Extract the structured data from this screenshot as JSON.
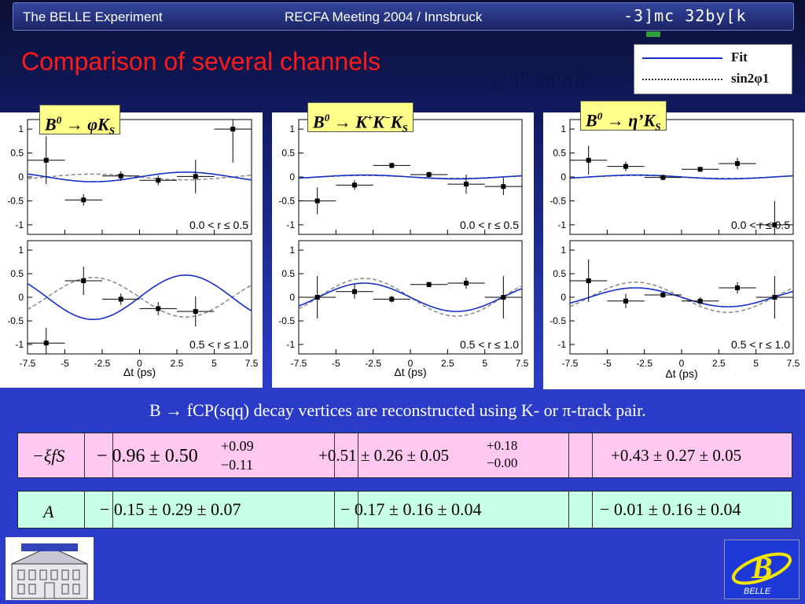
{
  "header": {
    "left": "The BELLE   Experiment",
    "center": "RECFA Meeting 2004 / Innsbruck",
    "right": "-3]mc 32by[k"
  },
  "title": "Comparison of several channels",
  "dataset": "@ 152M BB̄",
  "legend": {
    "fit_label": "Fit",
    "sin_label": "sin2φ1",
    "fit_color": "#1530c8",
    "sin_color": "#888888"
  },
  "caption": "B → fCP(sqq) decay vertices are reconstructed using K- or π-track pair.",
  "chart_data": [
    {
      "type": "scatter",
      "channel": "B0 → φKS",
      "xlabel": "Δt (ps)",
      "ylim": [
        -1.2,
        1.2
      ],
      "xlim": [
        -7.5,
        7.5
      ],
      "subplots": [
        {
          "label": "0.0 < r ≤ 0.5",
          "points": [
            [
              -6.25,
              0.35,
              0.5
            ],
            [
              -3.75,
              -0.48,
              0.12
            ],
            [
              -1.25,
              0.02,
              0.1
            ],
            [
              1.25,
              -0.07,
              0.1
            ],
            [
              3.75,
              0.01,
              0.35
            ],
            [
              6.25,
              1.0,
              0.7
            ]
          ],
          "fit": {
            "amp": 0.1,
            "decay": 0.0
          },
          "ref": {
            "amp": -0.06,
            "decay": 0.0
          }
        },
        {
          "label": "0.5 < r ≤ 1.0",
          "points": [
            [
              -6.25,
              -0.97,
              0.32
            ],
            [
              -3.75,
              0.35,
              0.3
            ],
            [
              -1.25,
              -0.04,
              0.12
            ],
            [
              1.25,
              -0.24,
              0.14
            ],
            [
              3.75,
              -0.3,
              0.32
            ]
          ],
          "fit": {
            "amp": 0.47,
            "decay": 0.0
          },
          "ref": {
            "amp": -0.42,
            "decay": 0.0
          }
        }
      ]
    },
    {
      "type": "scatter",
      "channel": "B0 → K+K−KS",
      "xlabel": "Δt (ps)",
      "ylim": [
        -1.2,
        1.2
      ],
      "xlim": [
        -7.5,
        7.5
      ],
      "subplots": [
        {
          "label": "0.0 < r ≤ 0.5",
          "points": [
            [
              -6.25,
              -0.5,
              0.28
            ],
            [
              -3.75,
              -0.17,
              0.1
            ],
            [
              -1.25,
              0.24,
              0.06
            ],
            [
              1.25,
              0.05,
              0.06
            ],
            [
              3.75,
              -0.15,
              0.2
            ],
            [
              6.25,
              -0.2,
              0.18
            ]
          ],
          "fit": {
            "amp": -0.04,
            "decay": 0.0
          },
          "ref": {
            "amp": -0.03,
            "decay": 0.0
          }
        },
        {
          "label": "0.5 < r ≤ 1.0",
          "points": [
            [
              -6.25,
              0.0,
              0.45
            ],
            [
              -3.75,
              0.12,
              0.15
            ],
            [
              -1.25,
              -0.04,
              0.07
            ],
            [
              1.25,
              0.27,
              0.06
            ],
            [
              3.75,
              0.3,
              0.12
            ],
            [
              6.25,
              0.0,
              0.45
            ]
          ],
          "fit": {
            "amp": -0.3,
            "decay": 0.0
          },
          "ref": {
            "amp": -0.4,
            "decay": 0.0
          }
        }
      ]
    },
    {
      "type": "scatter",
      "channel": "B0 → η’KS",
      "xlabel": "Δt (ps)",
      "ylim": [
        -1.2,
        1.2
      ],
      "xlim": [
        -7.5,
        7.5
      ],
      "subplots": [
        {
          "label": "0.0 < r ≤ 0.5",
          "points": [
            [
              -6.25,
              0.35,
              0.3
            ],
            [
              -3.75,
              0.22,
              0.1
            ],
            [
              -1.25,
              -0.01,
              0.06
            ],
            [
              1.25,
              0.16,
              0.05
            ],
            [
              3.75,
              0.28,
              0.12
            ],
            [
              6.25,
              -1.0,
              0.5
            ]
          ],
          "fit": {
            "amp": -0.04,
            "decay": 0.0
          },
          "ref": {
            "amp": -0.03,
            "decay": 0.0
          }
        },
        {
          "label": "0.5 < r ≤ 1.0",
          "points": [
            [
              -6.25,
              0.35,
              0.45
            ],
            [
              -3.75,
              -0.08,
              0.15
            ],
            [
              -1.25,
              0.05,
              0.06
            ],
            [
              1.25,
              -0.08,
              0.08
            ],
            [
              3.75,
              0.2,
              0.12
            ],
            [
              6.25,
              0.0,
              0.45
            ]
          ],
          "fit": {
            "amp": -0.2,
            "decay": 0.0
          },
          "ref": {
            "amp": -0.32,
            "decay": 0.0
          }
        }
      ]
    }
  ],
  "table": {
    "row1": {
      "label": "−ξfS",
      "values": [
        "− 0.96 ± 0.50",
        "+0.51 ± 0.26 ± 0.05",
        "+0.43 ± 0.27 ± 0.05"
      ],
      "sup1": "+0.09",
      "sub1": "−0.11",
      "sup2": "+0.18",
      "sub2": "−0.00",
      "bg": "#ffc8f0"
    },
    "row2": {
      "label": "A",
      "values": [
        "− 0.15 ± 0.29 ± 0.07",
        "− 0.17 ± 0.16 ± 0.04",
        "− 0.01 ± 0.16 ± 0.04"
      ],
      "bg": "#c8ffe8"
    }
  },
  "logo_right_text": "BELLE"
}
